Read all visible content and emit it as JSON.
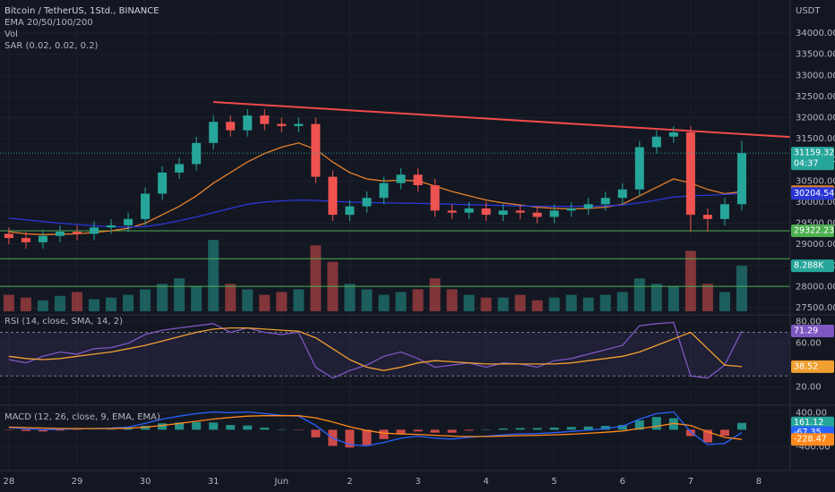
{
  "chart_data": [
    {
      "type": "candlestick",
      "title": "Bitcoin / TetherUS, 1Std., BINANCE",
      "legend_items": [
        "EMA 20/50/100/200",
        "Vol",
        "SAR (0.02, 0.02, 0.2)"
      ],
      "currency": "USDT",
      "countdown": "04:37",
      "up_color": "#26a69a",
      "down_color": "#ef5350",
      "xlim": [
        27.87,
        39.46
      ],
      "xticks": [
        28,
        29,
        30,
        31,
        {
          "value": 32,
          "label": "Jun"
        },
        {
          "value": 33,
          "label": "2"
        },
        {
          "value": 34,
          "label": "3"
        },
        {
          "value": 35,
          "label": "4"
        },
        {
          "value": 36,
          "label": "5"
        },
        {
          "value": 37,
          "label": "6"
        },
        {
          "value": 38,
          "label": "7"
        },
        {
          "value": 39,
          "label": "8"
        }
      ],
      "ylim": [
        27373,
        34784
      ],
      "yticks": [
        {
          "value": 27500,
          "label": "27500.00"
        },
        {
          "value": 28000,
          "label": "28000.00"
        },
        {
          "value": 28500,
          "label": "28500.00"
        },
        {
          "value": 29000,
          "label": "29000.00"
        },
        {
          "value": 29500,
          "label": "29500.00"
        },
        {
          "value": 30000,
          "label": "30000.00"
        },
        {
          "value": 30500,
          "label": "30500.00"
        },
        {
          "value": 31000,
          "label": "31000.00"
        },
        {
          "value": 31500,
          "label": "31500.00"
        },
        {
          "value": 32000,
          "label": "32000.00"
        },
        {
          "value": 32500,
          "label": "32500.00"
        },
        {
          "value": 33000,
          "label": "33000.00"
        },
        {
          "value": 33500,
          "label": "33500.00"
        },
        {
          "value": 34000,
          "label": "34000.00"
        }
      ],
      "x": [
        28,
        28.25,
        28.5,
        28.75,
        29,
        29.25,
        29.5,
        29.75,
        30,
        30.25,
        30.5,
        30.75,
        31,
        31.25,
        31.5,
        31.75,
        32,
        32.25,
        32.5,
        32.75,
        33,
        33.25,
        33.5,
        33.75,
        34,
        34.25,
        34.5,
        34.75,
        35,
        35.25,
        35.5,
        35.75,
        36,
        36.25,
        36.5,
        36.75,
        37,
        37.25,
        37.5,
        37.75,
        38,
        38.25,
        38.5,
        38.75
      ],
      "open": [
        29250,
        29150,
        29050,
        29200,
        29300,
        29250,
        29400,
        29450,
        29600,
        30200,
        30700,
        30900,
        31400,
        31900,
        31700,
        32050,
        31850,
        31800,
        31850,
        30600,
        29700,
        29900,
        30100,
        30450,
        30650,
        30400,
        29800,
        29750,
        29850,
        29700,
        29800,
        29750,
        29650,
        29800,
        29850,
        29950,
        30100,
        30300,
        31300,
        31550,
        31650,
        29700,
        29600,
        29950
      ],
      "high": [
        29400,
        29300,
        29350,
        29450,
        29450,
        29550,
        29600,
        29750,
        30350,
        30850,
        31050,
        31550,
        32050,
        32050,
        32200,
        32200,
        32000,
        32000,
        32000,
        30750,
        30050,
        30250,
        30600,
        30800,
        30800,
        30550,
        29950,
        30000,
        30000,
        29950,
        29950,
        29900,
        29950,
        30000,
        30100,
        30250,
        30450,
        31450,
        31700,
        31800,
        31800,
        29850,
        30100,
        31450
      ],
      "low": [
        29000,
        28900,
        28900,
        29050,
        29100,
        29100,
        29250,
        29300,
        29450,
        30050,
        30550,
        30750,
        31250,
        31550,
        31550,
        31700,
        31650,
        31650,
        30450,
        29550,
        29550,
        29750,
        29950,
        30300,
        30250,
        29650,
        29600,
        29600,
        29550,
        29550,
        29600,
        29500,
        29500,
        29650,
        29700,
        29800,
        29950,
        30150,
        31150,
        31400,
        29300,
        29300,
        29450,
        29800
      ],
      "close": [
        29150,
        29050,
        29200,
        29300,
        29250,
        29400,
        29450,
        29600,
        30200,
        30700,
        30900,
        31400,
        31900,
        31700,
        32050,
        31850,
        31800,
        31850,
        30600,
        29700,
        29900,
        30100,
        30450,
        30650,
        30400,
        29800,
        29750,
        29850,
        29700,
        29800,
        29750,
        29650,
        29800,
        29850,
        29950,
        30100,
        30300,
        31300,
        31550,
        31650,
        29700,
        29600,
        29950,
        31159.32
      ],
      "series": [
        {
          "color": "#e8812b",
          "values": [
            29300,
            29250,
            29230,
            29240,
            29250,
            29280,
            29320,
            29380,
            29500,
            29700,
            29900,
            30150,
            30450,
            30700,
            30950,
            31150,
            31300,
            31400,
            31250,
            30950,
            30700,
            30550,
            30500,
            30520,
            30500,
            30380,
            30250,
            30150,
            30050,
            29980,
            29930,
            29880,
            29850,
            29840,
            29850,
            29880,
            29950,
            30150,
            30350,
            30550,
            30450,
            30300,
            30200,
            30246.12
          ]
        },
        {
          "color": "#2a37d6",
          "values": [
            29620,
            29580,
            29540,
            29500,
            29470,
            29440,
            29420,
            29410,
            29420,
            29480,
            29560,
            29650,
            29750,
            29850,
            29950,
            30000,
            30030,
            30050,
            30040,
            30020,
            30000,
            29990,
            29980,
            29975,
            29970,
            29960,
            29950,
            29940,
            29930,
            29920,
            29910,
            29905,
            29900,
            29900,
            29905,
            29910,
            29930,
            29980,
            30050,
            30120,
            30150,
            30160,
            30180,
            30204.54
          ]
        }
      ],
      "volume": [
        3,
        2.5,
        2,
        2.8,
        3.5,
        2.2,
        2.5,
        3,
        4,
        5,
        6,
        4.5,
        13,
        5,
        4,
        3,
        3.5,
        4,
        12,
        9,
        5,
        4,
        3,
        3.5,
        4,
        6,
        4,
        3,
        2.5,
        2.5,
        3,
        2,
        2.5,
        3,
        2.5,
        3,
        3.5,
        6,
        5,
        4.5,
        11,
        5,
        3.5,
        8.288
      ],
      "volume_ylim": [
        0,
        14
      ],
      "volume_last_label": "8.288K",
      "trendline": {
        "color": "#f04a4a",
        "x": [
          31,
          39.46
        ],
        "y": [
          32369,
          31542
        ]
      },
      "levels": [
        {
          "value": 29322.23,
          "color": "#4caf50",
          "label": "29322.23"
        },
        {
          "value": 28660,
          "color": "#4caf50"
        },
        {
          "value": 28005,
          "color": "#4caf50"
        }
      ]
    },
    {
      "type": "line",
      "title": "RSI (14, close, SMA, 14, 2)",
      "ylim": [
        4,
        86
      ],
      "yticks": [
        {
          "value": 20,
          "label": "20.00"
        },
        {
          "value": 60,
          "label": "60.00"
        },
        {
          "value": 80,
          "label": "80.00"
        }
      ],
      "bands": [
        30,
        70
      ],
      "series": [
        {
          "color": "#7e57c2",
          "values": [
            45,
            42,
            48,
            52,
            50,
            55,
            56,
            60,
            68,
            72,
            74,
            76,
            78,
            70,
            74,
            70,
            68,
            70,
            38,
            28,
            35,
            40,
            48,
            52,
            46,
            38,
            40,
            42,
            38,
            42,
            41,
            38,
            44,
            46,
            50,
            54,
            58,
            76,
            78,
            79,
            30,
            28,
            40,
            71.29
          ]
        },
        {
          "color": "#f0a030",
          "values": [
            48,
            46,
            45,
            46,
            48,
            50,
            52,
            55,
            58,
            62,
            66,
            70,
            73,
            74,
            74,
            73,
            72,
            71,
            65,
            55,
            45,
            38,
            35,
            38,
            42,
            44,
            43,
            42,
            41,
            41,
            41,
            41,
            41,
            42,
            44,
            46,
            48,
            52,
            58,
            64,
            70,
            55,
            40,
            38.52
          ]
        }
      ]
    },
    {
      "type": "macd",
      "title": "MACD (12, 26, close, 9, EMA, EMA)",
      "ylim": [
        -940,
        556
      ],
      "yticks": [
        {
          "value": -400,
          "label": "-400.00"
        },
        {
          "value": 400,
          "label": "400.00"
        }
      ],
      "histogram": {
        "up_color": "#26a69a",
        "down_color": "#ef5350",
        "values": [
          -10,
          -30,
          -40,
          -20,
          -8,
          2,
          10,
          24,
          90,
          150,
          170,
          180,
          170,
          110,
          100,
          50,
          10,
          -10,
          -180,
          -380,
          -420,
          -360,
          -220,
          -100,
          -40,
          -70,
          -70,
          -20,
          10,
          30,
          40,
          40,
          50,
          65,
          75,
          90,
          110,
          220,
          300,
          270,
          -150,
          -300,
          -140,
          161.12
        ]
      },
      "series": [
        {
          "color": "#2962ff",
          "values": [
            50,
            20,
            0,
            10,
            20,
            30,
            40,
            60,
            150,
            250,
            320,
            380,
            420,
            400,
            420,
            380,
            340,
            320,
            100,
            -200,
            -350,
            -380,
            -300,
            -200,
            -150,
            -200,
            -220,
            -180,
            -150,
            -120,
            -100,
            -90,
            -70,
            -40,
            -10,
            30,
            80,
            250,
            380,
            420,
            -50,
            -350,
            -320,
            -67.35
          ]
        },
        {
          "color": "#ff8a1d",
          "values": [
            60,
            50,
            40,
            30,
            28,
            28,
            30,
            36,
            60,
            100,
            150,
            200,
            250,
            290,
            320,
            330,
            330,
            330,
            280,
            180,
            70,
            -20,
            -80,
            -100,
            -110,
            -130,
            -150,
            -160,
            -160,
            -150,
            -140,
            -130,
            -120,
            -105,
            -85,
            -60,
            -30,
            30,
            80,
            150,
            100,
            -50,
            -180,
            -228.47
          ]
        }
      ]
    }
  ]
}
